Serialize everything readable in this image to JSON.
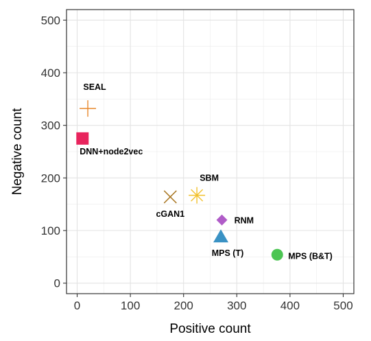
{
  "chart_data": {
    "type": "scatter",
    "xlabel": "Positive count",
    "ylabel": "Negative count",
    "xlim": [
      -20,
      520
    ],
    "ylim": [
      -20,
      520
    ],
    "xticks": [
      "0",
      "100",
      "200",
      "300",
      "400",
      "500"
    ],
    "yticks": [
      "0",
      "100",
      "200",
      "300",
      "400",
      "500"
    ],
    "grid": true,
    "points": [
      {
        "label": "SEAL",
        "x": 20,
        "y": 332,
        "shape": "plus",
        "color": "#E8872A"
      },
      {
        "label": "DNN+node2vec",
        "x": 10,
        "y": 275,
        "shape": "square",
        "color": "#E8245D"
      },
      {
        "label": "cGAN1",
        "x": 175,
        "y": 164,
        "shape": "cross",
        "color": "#A87520"
      },
      {
        "label": "SBM",
        "x": 225,
        "y": 167,
        "shape": "asterisk",
        "color": "#F2C12E"
      },
      {
        "label": "RNM",
        "x": 272,
        "y": 120,
        "shape": "diamond",
        "color": "#B05CC8"
      },
      {
        "label": "MPS (T)",
        "x": 270,
        "y": 88,
        "shape": "triangle",
        "color": "#3A92C4"
      },
      {
        "label": "MPS (B&T)",
        "x": 376,
        "y": 54,
        "shape": "circle",
        "color": "#4CC553"
      }
    ]
  }
}
